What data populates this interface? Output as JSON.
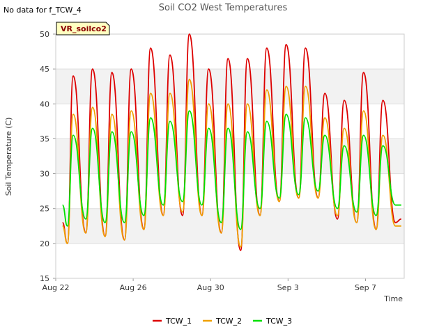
{
  "no_data_text": "No data for f_TCW_4",
  "site_label": "VR_soilco2",
  "chart_data": {
    "type": "line",
    "title": "Soil CO2 West Temperatures",
    "xlabel": "Time",
    "ylabel": "Soil Temperature (C)",
    "ylim": [
      15,
      50
    ],
    "yticks": [
      15,
      20,
      25,
      30,
      35,
      40,
      45,
      50
    ],
    "xlim": [
      0,
      18
    ],
    "xticks": [
      {
        "value": 0,
        "label": "Aug 22"
      },
      {
        "value": 4,
        "label": "Aug 26"
      },
      {
        "value": 8,
        "label": "Aug 30"
      },
      {
        "value": 12,
        "label": "Sep 3"
      },
      {
        "value": 16,
        "label": "Sep 7"
      }
    ],
    "grid": true,
    "legend_position": "bottom",
    "series": [
      {
        "name": "TCW_1",
        "color": "#dd0000",
        "x": [
          0.35,
          0.6,
          0.9,
          1.55,
          1.9,
          2.55,
          2.9,
          3.55,
          3.9,
          4.55,
          4.9,
          5.55,
          5.9,
          6.55,
          6.9,
          7.55,
          7.9,
          8.55,
          8.9,
          9.55,
          9.9,
          10.55,
          10.9,
          11.55,
          11.9,
          12.55,
          12.9,
          13.55,
          13.9,
          14.55,
          14.9,
          15.55,
          15.9,
          16.55,
          16.9,
          17.55,
          17.85
        ],
        "y": [
          23.0,
          20.0,
          44.0,
          21.5,
          45.0,
          21.0,
          44.5,
          20.5,
          45.0,
          22.0,
          48.0,
          24.0,
          47.0,
          24.0,
          50.0,
          24.0,
          45.0,
          21.5,
          46.5,
          19.0,
          46.5,
          24.0,
          48.0,
          26.0,
          48.5,
          26.5,
          48.0,
          26.5,
          41.5,
          23.5,
          40.5,
          23.0,
          44.5,
          22.0,
          40.5,
          23.0,
          23.5
        ]
      },
      {
        "name": "TCW_2",
        "color": "#f0a000",
        "x": [
          0.35,
          0.6,
          0.9,
          1.55,
          1.9,
          2.55,
          2.9,
          3.55,
          3.9,
          4.55,
          4.9,
          5.55,
          5.9,
          6.55,
          6.9,
          7.55,
          7.9,
          8.55,
          8.9,
          9.55,
          9.9,
          10.55,
          10.9,
          11.55,
          11.9,
          12.55,
          12.9,
          13.55,
          13.9,
          14.55,
          14.9,
          15.55,
          15.9,
          16.55,
          16.9,
          17.55,
          17.85
        ],
        "y": [
          22.5,
          20.0,
          38.5,
          21.5,
          39.5,
          21.0,
          38.5,
          20.5,
          39.0,
          22.0,
          41.5,
          24.0,
          41.5,
          24.5,
          43.5,
          24.0,
          40.0,
          21.5,
          40.0,
          19.5,
          40.0,
          24.0,
          42.0,
          26.0,
          42.5,
          26.5,
          42.5,
          26.5,
          38.0,
          24.0,
          36.5,
          23.0,
          39.0,
          22.0,
          35.5,
          22.5,
          22.5
        ]
      },
      {
        "name": "TCW_3",
        "color": "#00e000",
        "x": [
          0.35,
          0.6,
          0.9,
          1.55,
          1.9,
          2.55,
          2.9,
          3.55,
          3.9,
          4.55,
          4.9,
          5.55,
          5.9,
          6.55,
          6.9,
          7.55,
          7.9,
          8.55,
          8.9,
          9.55,
          9.9,
          10.55,
          10.9,
          11.55,
          11.9,
          12.55,
          12.9,
          13.55,
          13.9,
          14.55,
          14.9,
          15.55,
          15.9,
          16.55,
          16.9,
          17.55,
          17.85
        ],
        "y": [
          25.5,
          22.5,
          35.5,
          23.5,
          36.5,
          23.0,
          36.0,
          23.0,
          36.0,
          24.0,
          38.0,
          25.5,
          37.5,
          26.0,
          39.0,
          25.5,
          36.5,
          23.0,
          36.5,
          22.0,
          36.0,
          25.0,
          37.5,
          26.5,
          38.5,
          27.0,
          38.0,
          27.5,
          35.5,
          25.0,
          34.0,
          24.5,
          35.5,
          24.0,
          34.0,
          25.5,
          25.5
        ]
      }
    ]
  }
}
